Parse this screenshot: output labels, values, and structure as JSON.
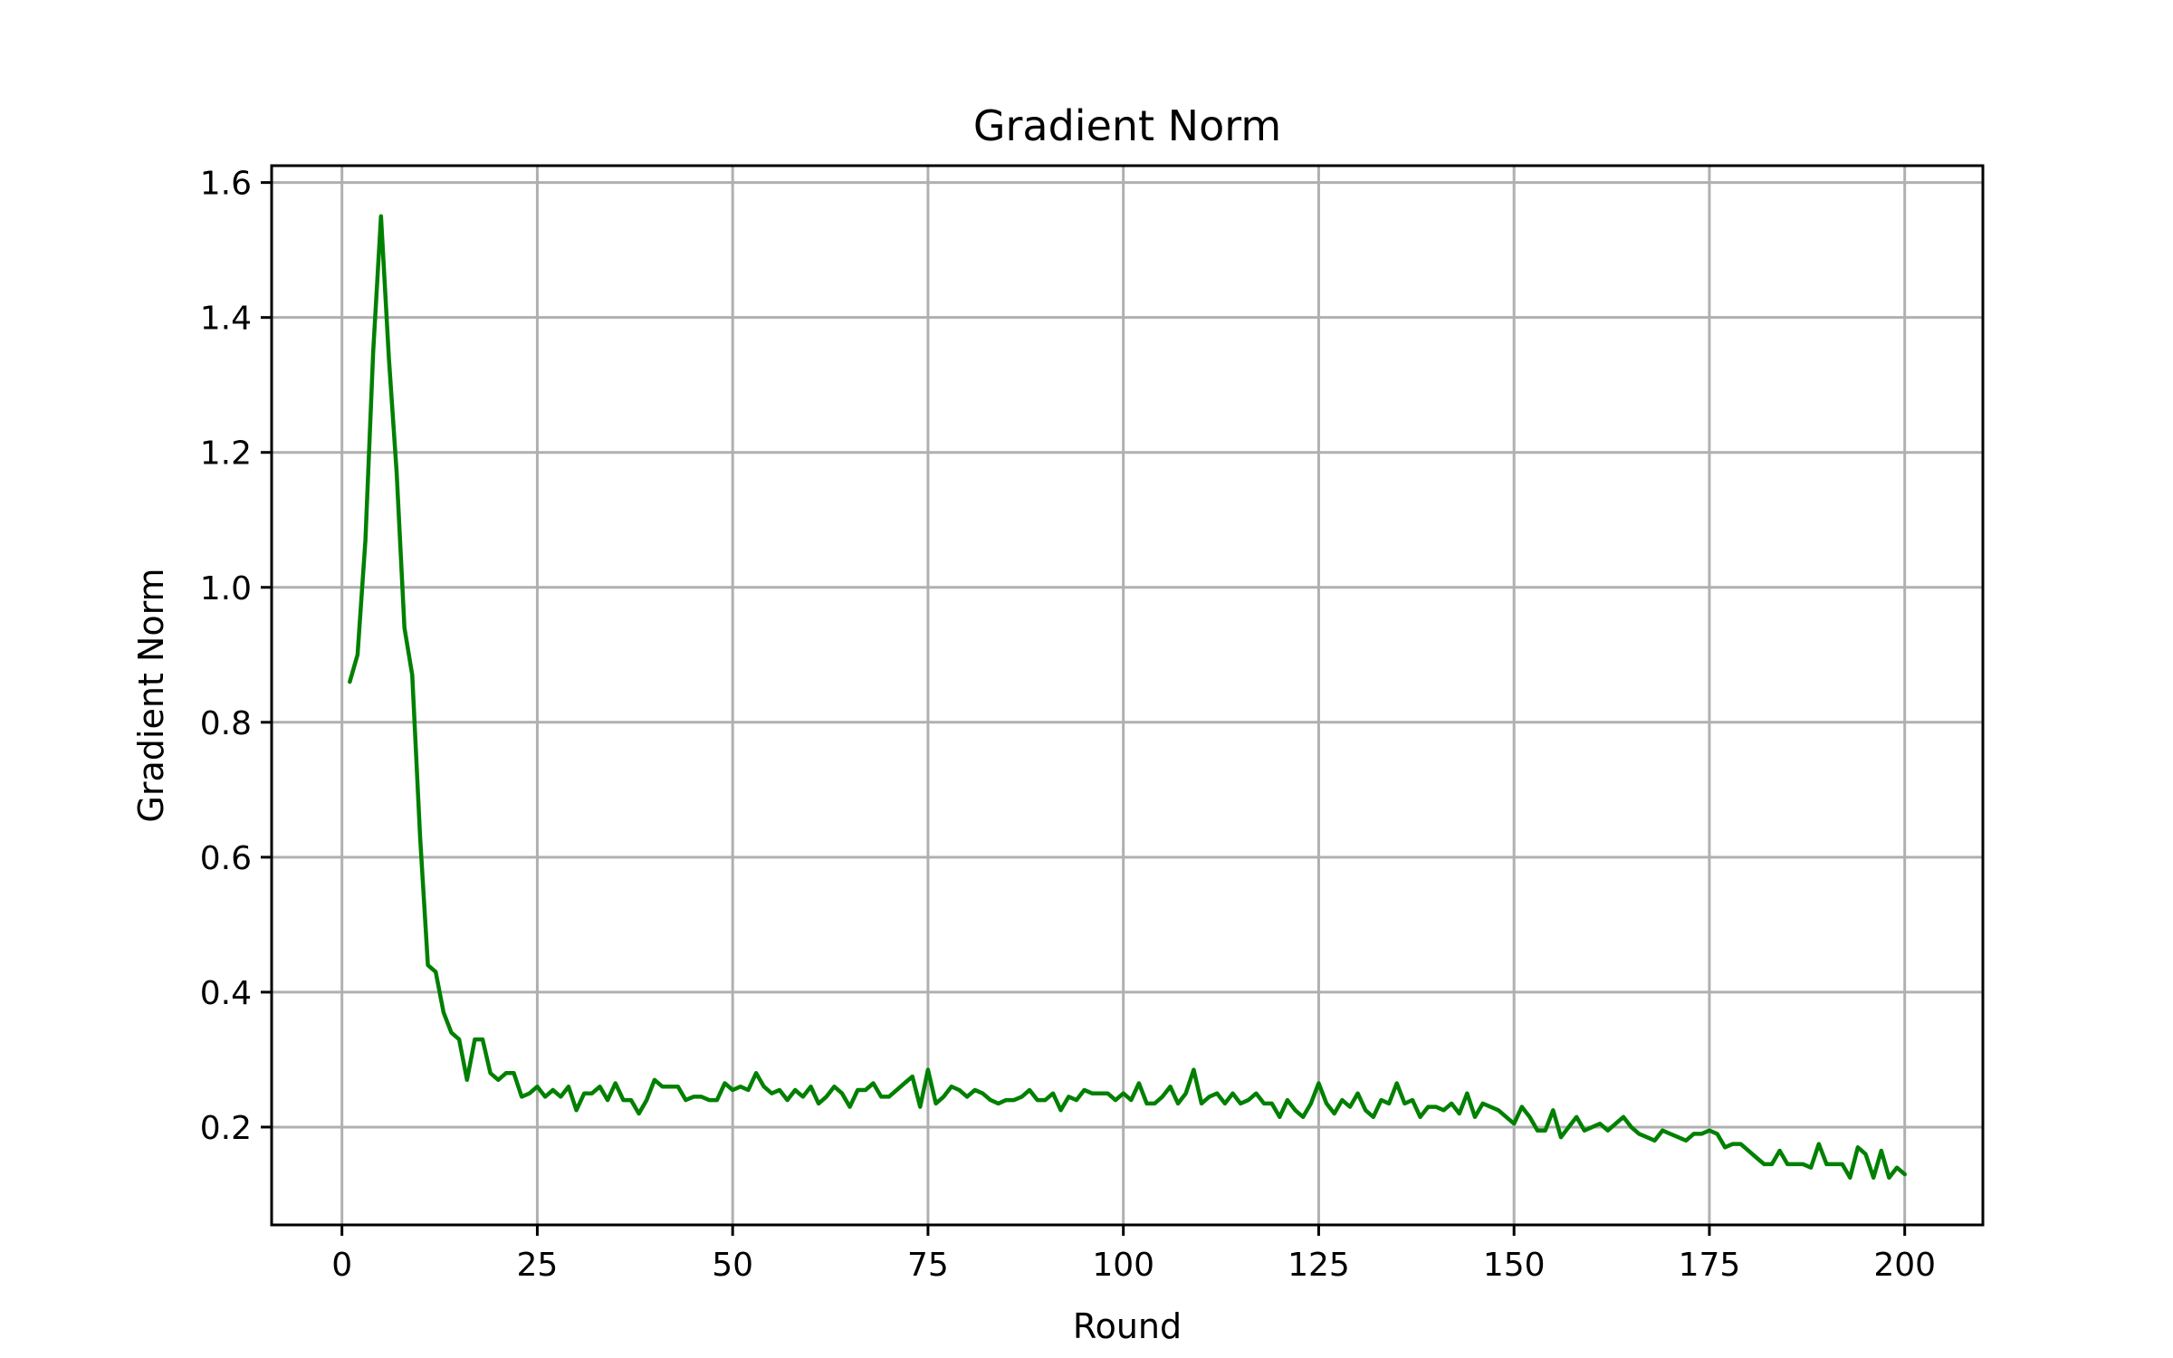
{
  "chart_data": {
    "type": "line",
    "title": "Gradient Norm",
    "xlabel": "Round",
    "ylabel": "Gradient Norm",
    "xlim": [
      -9,
      210
    ],
    "ylim": [
      0.055,
      1.625
    ],
    "xticks": [
      0,
      25,
      50,
      75,
      100,
      125,
      150,
      175,
      200
    ],
    "yticks": [
      0.2,
      0.4,
      0.6,
      0.8,
      1.0,
      1.2,
      1.4,
      1.6
    ],
    "ytick_labels": [
      "0.2",
      "0.4",
      "0.6",
      "0.8",
      "1.0",
      "1.2",
      "1.4",
      "1.6"
    ],
    "grid": true,
    "series": [
      {
        "color": "#008000",
        "x_start": 1,
        "x_step": 1,
        "values": [
          0.86,
          0.9,
          1.07,
          1.35,
          1.55,
          1.34,
          1.17,
          0.94,
          0.87,
          0.63,
          0.44,
          0.43,
          0.37,
          0.34,
          0.33,
          0.27,
          0.33,
          0.33,
          0.28,
          0.27,
          0.28,
          0.28,
          0.245,
          0.25,
          0.26,
          0.245,
          0.255,
          0.245,
          0.26,
          0.225,
          0.25,
          0.25,
          0.26,
          0.24,
          0.265,
          0.24,
          0.24,
          0.22,
          0.24,
          0.27,
          0.26,
          0.26,
          0.26,
          0.24,
          0.245,
          0.245,
          0.24,
          0.24,
          0.265,
          0.255,
          0.26,
          0.255,
          0.28,
          0.26,
          0.25,
          0.255,
          0.24,
          0.255,
          0.245,
          0.26,
          0.235,
          0.245,
          0.26,
          0.25,
          0.23,
          0.255,
          0.255,
          0.265,
          0.245,
          0.245,
          0.255,
          0.265,
          0.275,
          0.23,
          0.285,
          0.235,
          0.245,
          0.26,
          0.255,
          0.245,
          0.255,
          0.25,
          0.24,
          0.235,
          0.24,
          0.24,
          0.245,
          0.255,
          0.24,
          0.24,
          0.25,
          0.225,
          0.245,
          0.24,
          0.255,
          0.25,
          0.25,
          0.25,
          0.24,
          0.25,
          0.24,
          0.265,
          0.235,
          0.235,
          0.245,
          0.26,
          0.235,
          0.25,
          0.285,
          0.235,
          0.245,
          0.25,
          0.235,
          0.25,
          0.235,
          0.24,
          0.25,
          0.235,
          0.235,
          0.215,
          0.24,
          0.225,
          0.215,
          0.235,
          0.265,
          0.235,
          0.22,
          0.24,
          0.23,
          0.25,
          0.225,
          0.215,
          0.24,
          0.235,
          0.265,
          0.235,
          0.24,
          0.215,
          0.23,
          0.23,
          0.225,
          0.235,
          0.22,
          0.25,
          0.215,
          0.235,
          0.23,
          0.225,
          0.215,
          0.205,
          0.23,
          0.215,
          0.195,
          0.195,
          0.225,
          0.185,
          0.2,
          0.215,
          0.195,
          0.2,
          0.205,
          0.195,
          0.205,
          0.215,
          0.2,
          0.19,
          0.185,
          0.18,
          0.195,
          0.19,
          0.185,
          0.18,
          0.19,
          0.19,
          0.195,
          0.19,
          0.17,
          0.175,
          0.175,
          0.165,
          0.155,
          0.145,
          0.145,
          0.165,
          0.145,
          0.145,
          0.145,
          0.14,
          0.175,
          0.145,
          0.145,
          0.145,
          0.125,
          0.17,
          0.16,
          0.125,
          0.165,
          0.125,
          0.14,
          0.13
        ]
      }
    ]
  }
}
